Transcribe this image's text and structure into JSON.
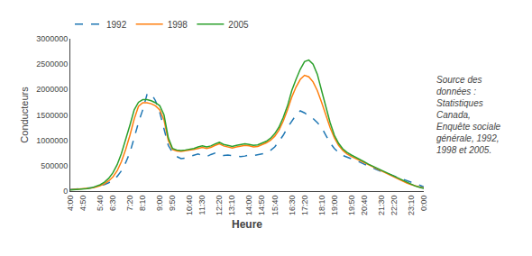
{
  "chart_data": {
    "type": "line",
    "ylabel": "Conducteurs",
    "xlabel": "Heure",
    "annotation": "Source des\ndonnées :\nStatistiques\nCanada,\nEnquête sociale\ngénérale, 1992,\n1998 et 2005.",
    "categories": [
      "4:00",
      null,
      null,
      "4:50",
      null,
      null,
      null,
      "5:40",
      null,
      null,
      "6:30",
      null,
      null,
      null,
      "7:20",
      null,
      null,
      "8:10",
      null,
      null,
      null,
      "9:00",
      null,
      null,
      "9:50",
      null,
      null,
      null,
      "10:40",
      null,
      null,
      "11:30",
      null,
      null,
      null,
      "12:20",
      null,
      null,
      "13:10",
      null,
      null,
      null,
      "14:00",
      null,
      null,
      "14:50",
      null,
      null,
      "15:40",
      null,
      null,
      null,
      "16:30",
      null,
      null,
      "17:20",
      null,
      null,
      null,
      "18:10",
      null,
      null,
      "19:00",
      null,
      null,
      null,
      "19:50",
      null,
      null,
      "20:40",
      null,
      null,
      null,
      "21:30",
      null,
      null,
      "22:20",
      null,
      null,
      null,
      "23:10",
      null,
      null,
      "0:00"
    ],
    "ylim": [
      0,
      3000000
    ],
    "yticks": [
      0,
      500000,
      1000000,
      1500000,
      2000000,
      2500000,
      3000000
    ],
    "grid": false,
    "legend": "top",
    "series": [
      {
        "name": "1992",
        "line_style": "dashed",
        "values": [
          30000,
          35000,
          40000,
          45000,
          55000,
          65000,
          80000,
          100000,
          130000,
          165000,
          210000,
          290000,
          400000,
          560000,
          760000,
          1050000,
          1350000,
          1600000,
          1900000,
          1920000,
          1780000,
          1550000,
          1200000,
          900000,
          760000,
          680000,
          640000,
          650000,
          680000,
          700000,
          730000,
          700000,
          680000,
          720000,
          750000,
          720000,
          700000,
          710000,
          700000,
          690000,
          680000,
          690000,
          710000,
          700000,
          720000,
          730000,
          750000,
          800000,
          870000,
          980000,
          1100000,
          1250000,
          1380000,
          1500000,
          1580000,
          1540000,
          1480000,
          1430000,
          1350000,
          1250000,
          1100000,
          950000,
          840000,
          760000,
          700000,
          670000,
          640000,
          600000,
          570000,
          530000,
          490000,
          460000,
          420000,
          390000,
          360000,
          330000,
          300000,
          260000,
          230000,
          200000,
          170000,
          140000,
          110000,
          85000
        ]
      },
      {
        "name": "1998",
        "line_style": "solid",
        "values": [
          25000,
          30000,
          35000,
          40000,
          50000,
          60000,
          80000,
          105000,
          145000,
          200000,
          280000,
          400000,
          580000,
          820000,
          1100000,
          1420000,
          1670000,
          1740000,
          1740000,
          1720000,
          1680000,
          1600000,
          1400000,
          1000000,
          820000,
          790000,
          780000,
          790000,
          800000,
          820000,
          840000,
          860000,
          840000,
          860000,
          900000,
          930000,
          890000,
          870000,
          850000,
          870000,
          880000,
          900000,
          890000,
          870000,
          880000,
          910000,
          950000,
          1000000,
          1080000,
          1200000,
          1380000,
          1600000,
          1850000,
          2050000,
          2200000,
          2280000,
          2250000,
          2150000,
          1980000,
          1750000,
          1500000,
          1250000,
          1050000,
          900000,
          800000,
          730000,
          680000,
          640000,
          600000,
          560000,
          510000,
          470000,
          430000,
          390000,
          350000,
          310000,
          270000,
          230000,
          190000,
          160000,
          130000,
          100000,
          80000,
          60000
        ]
      },
      {
        "name": "2005",
        "line_style": "solid",
        "values": [
          20000,
          25000,
          32000,
          38000,
          50000,
          65000,
          90000,
          125000,
          175000,
          250000,
          360000,
          520000,
          740000,
          1000000,
          1300000,
          1600000,
          1750000,
          1800000,
          1800000,
          1780000,
          1740000,
          1680000,
          1500000,
          1050000,
          840000,
          810000,
          800000,
          810000,
          820000,
          840000,
          870000,
          890000,
          870000,
          890000,
          930000,
          960000,
          920000,
          900000,
          880000,
          900000,
          910000,
          930000,
          920000,
          900000,
          910000,
          940000,
          980000,
          1040000,
          1130000,
          1260000,
          1450000,
          1680000,
          1980000,
          2200000,
          2400000,
          2550000,
          2580000,
          2500000,
          2300000,
          1980000,
          1650000,
          1350000,
          1100000,
          940000,
          830000,
          760000,
          710000,
          670000,
          630000,
          580000,
          530000,
          490000,
          450000,
          410000,
          370000,
          330000,
          290000,
          250000,
          210000,
          170000,
          130000,
          100000,
          75000,
          55000
        ]
      }
    ]
  }
}
